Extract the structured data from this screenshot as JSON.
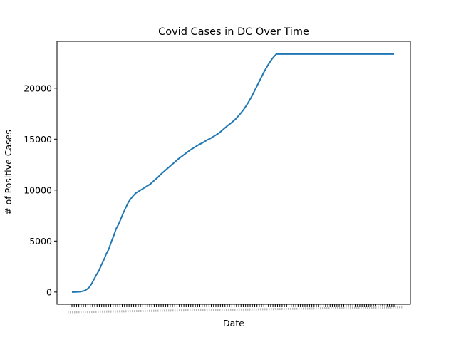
{
  "chart_data": {
    "type": "line",
    "title": "Covid Cases in DC Over Time",
    "xlabel": "Date",
    "ylabel": "# of Positive Cases",
    "ylim": [
      -1200,
      24600
    ],
    "yticks": [
      0,
      5000,
      10000,
      15000,
      20000
    ],
    "grid": false,
    "legend": "none",
    "series_color": "#1f77b4",
    "x_tick_count": 142,
    "series": [
      {
        "x": [
          0,
          5,
          10,
          15,
          18,
          21,
          24,
          27,
          30,
          33,
          36,
          39,
          42,
          45,
          48,
          51,
          54,
          57,
          60,
          63,
          66,
          69,
          72,
          75,
          78,
          81,
          84,
          87,
          90,
          93,
          96,
          100,
          105,
          110,
          115,
          120,
          125,
          130,
          135,
          140,
          145,
          150,
          155,
          160,
          165,
          170,
          175,
          180,
          185,
          190,
          195,
          200,
          205,
          210,
          215,
          220,
          225,
          230,
          235,
          240,
          245,
          250,
          255,
          260,
          265,
          270,
          275,
          280,
          285,
          290,
          295,
          300,
          305,
          310,
          315,
          320,
          325,
          330,
          335,
          340,
          345,
          350,
          355,
          360,
          363,
          366,
          369,
          372,
          375,
          378,
          381,
          384,
          387,
          390,
          392,
          394
        ],
        "values": [
          0,
          10,
          30,
          120,
          250,
          450,
          800,
          1250,
          1700,
          2100,
          2650,
          3150,
          3750,
          4200,
          4900,
          5500,
          6200,
          6650,
          7200,
          7800,
          8300,
          8800,
          9150,
          9450,
          9700,
          9850,
          10000,
          10150,
          10300,
          10450,
          10600,
          10900,
          11250,
          11650,
          12000,
          12350,
          12700,
          13050,
          13350,
          13650,
          13950,
          14200,
          14450,
          14650,
          14900,
          15100,
          15350,
          15600,
          15950,
          16300,
          16600,
          16950,
          17400,
          17900,
          18500,
          19200,
          20000,
          20800,
          21600,
          22300,
          22900,
          23350,
          23350,
          23350,
          23350,
          23350,
          23350,
          23350,
          23350,
          23350,
          23350,
          23350,
          23350,
          23350,
          23350,
          23350,
          23350,
          23350,
          23350,
          23350,
          23350,
          23350,
          23350,
          23350,
          23350,
          23350,
          23350,
          23350,
          23350,
          23350,
          23350,
          23350,
          23350,
          23350,
          23350,
          23350
        ]
      }
    ]
  }
}
